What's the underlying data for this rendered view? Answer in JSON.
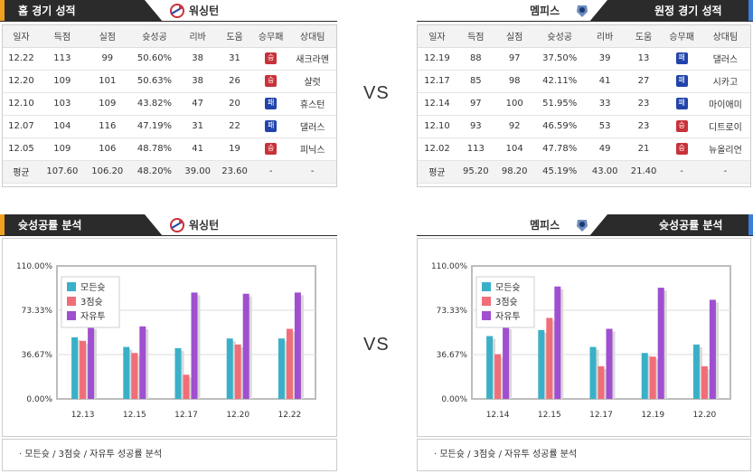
{
  "left_header": {
    "title": "홈 경기 성적",
    "team": "워싱턴"
  },
  "right_header": {
    "title": "원정 경기 성적",
    "team": "멤피스"
  },
  "vs_label": "VS",
  "columns": [
    "일자",
    "득점",
    "실점",
    "슛성공",
    "리바",
    "도움",
    "승무패",
    "상대팀"
  ],
  "left_games": [
    [
      "12.22",
      "113",
      "99",
      "50.60%",
      "38",
      "31",
      "승",
      "새크라멘"
    ],
    [
      "12.20",
      "109",
      "101",
      "50.63%",
      "38",
      "26",
      "승",
      "샬럿"
    ],
    [
      "12.10",
      "103",
      "109",
      "43.82%",
      "47",
      "20",
      "패",
      "휴스턴"
    ],
    [
      "12.07",
      "104",
      "116",
      "47.19%",
      "31",
      "22",
      "패",
      "댈러스"
    ],
    [
      "12.05",
      "109",
      "106",
      "48.78%",
      "41",
      "19",
      "승",
      "피닉스"
    ]
  ],
  "left_avg": [
    "평균",
    "107.60",
    "106.20",
    "48.20%",
    "39.00",
    "23.60",
    "-",
    "-"
  ],
  "right_games": [
    [
      "12.19",
      "88",
      "97",
      "37.50%",
      "39",
      "13",
      "패",
      "댈러스"
    ],
    [
      "12.17",
      "85",
      "98",
      "42.11%",
      "41",
      "27",
      "패",
      "시카고"
    ],
    [
      "12.14",
      "97",
      "100",
      "51.95%",
      "33",
      "23",
      "패",
      "마이애미"
    ],
    [
      "12.10",
      "93",
      "92",
      "46.59%",
      "53",
      "23",
      "승",
      "디트로이"
    ],
    [
      "12.02",
      "113",
      "104",
      "47.78%",
      "49",
      "21",
      "승",
      "뉴올리언"
    ]
  ],
  "right_avg": [
    "평균",
    "95.20",
    "98.20",
    "45.19%",
    "43.00",
    "21.40",
    "-",
    "-"
  ],
  "left_chart_header": {
    "title": "슛성공률 분석",
    "team": "워싱턴"
  },
  "right_chart_header": {
    "title": "슛성공률 분석",
    "team": "멤피스"
  },
  "caption": "모든슛 / 3점슛 / 자유투 성공률 분석",
  "colors": {
    "all": "#3ab0c8",
    "three": "#f06e78",
    "ft": "#a04fd0",
    "win": "#c8323a",
    "lose": "#2244aa",
    "accent_left": "#f0a020",
    "accent_right": "#3c7ed8"
  },
  "chart_data": [
    {
      "type": "bar",
      "categories": [
        "12.13",
        "12.15",
        "12.17",
        "12.20",
        "12.22"
      ],
      "series": [
        {
          "name": "모든슛",
          "values": [
            51,
            43,
            42,
            50,
            50
          ]
        },
        {
          "name": "3점슛",
          "values": [
            48,
            38,
            20,
            45,
            58
          ]
        },
        {
          "name": "자유투",
          "values": [
            60,
            60,
            88,
            87,
            88
          ]
        }
      ],
      "yticks": [
        "110.00%",
        "73.33%",
        "36.67%",
        "0.00%"
      ],
      "ylim": [
        0,
        110
      ],
      "legend": "top-left"
    },
    {
      "type": "bar",
      "categories": [
        "12.14",
        "12.15",
        "12.17",
        "12.19",
        "12.20"
      ],
      "series": [
        {
          "name": "모든슛",
          "values": [
            52,
            57,
            43,
            38,
            45
          ]
        },
        {
          "name": "3점슛",
          "values": [
            37,
            67,
            27,
            35,
            27
          ]
        },
        {
          "name": "자유투",
          "values": [
            60,
            93,
            58,
            92,
            82
          ]
        }
      ],
      "yticks": [
        "110.00%",
        "73.33%",
        "36.67%",
        "0.00%"
      ],
      "ylim": [
        0,
        110
      ],
      "legend": "top-left"
    }
  ]
}
